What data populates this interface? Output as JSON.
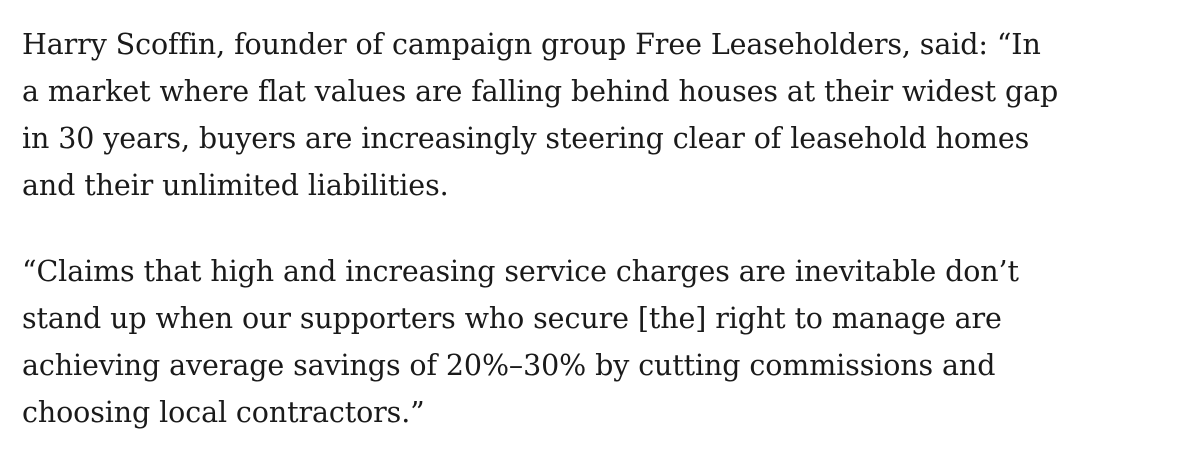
{
  "paragraphs": [
    {
      "lines": [
        "Harry Scoffin, founder of campaign group Free Leaseholders, said: “In",
        "a market where flat values are falling behind houses at their widest gap",
        "in 30 years, buyers are increasingly steering clear of leasehold homes",
        "and their unlimited liabilities."
      ]
    },
    {
      "lines": [
        "“Claims that high and increasing service charges are inevitable don’t",
        "stand up when our supporters who secure [the] right to manage are",
        "achieving average savings of 20%–30% by cutting commissions and",
        "choosing local contractors.”"
      ]
    }
  ]
}
